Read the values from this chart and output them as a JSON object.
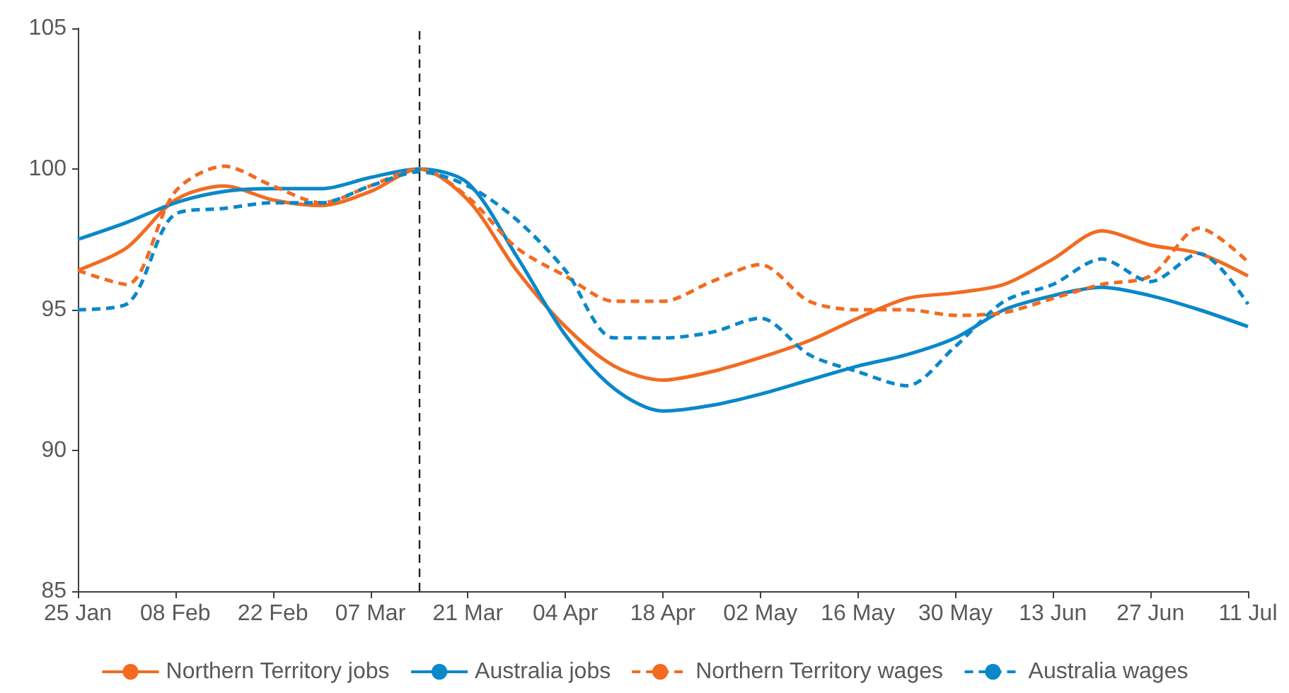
{
  "chart_data": {
    "type": "line",
    "x": [
      "--01-25",
      "--02-01",
      "--02-08",
      "--02-15",
      "--02-22",
      "--02-29",
      "--03-07",
      "--03-14",
      "--03-21",
      "--03-28",
      "--04-04",
      "--04-11",
      "--04-18",
      "--04-25",
      "--05-02",
      "--05-09",
      "--05-16",
      "--05-23",
      "--05-30",
      "--06-06",
      "--06-13",
      "--06-20",
      "--06-27",
      "--07-04",
      "--07-11"
    ],
    "xlim": [
      "--01-25",
      "--07-11"
    ],
    "xticks": [
      {
        "value": "--01-25",
        "label": "25 Jan"
      },
      {
        "value": "--02-08",
        "label": "08 Feb"
      },
      {
        "value": "--02-22",
        "label": "22 Feb"
      },
      {
        "value": "--03-07",
        "label": "07 Mar"
      },
      {
        "value": "--03-21",
        "label": "21 Mar"
      },
      {
        "value": "--04-04",
        "label": "04 Apr"
      },
      {
        "value": "--04-18",
        "label": "18 Apr"
      },
      {
        "value": "--05-02",
        "label": "02 May"
      },
      {
        "value": "--05-16",
        "label": "16 May"
      },
      {
        "value": "--05-30",
        "label": "30 May"
      },
      {
        "value": "--06-13",
        "label": "13 Jun"
      },
      {
        "value": "--06-27",
        "label": "27 Jun"
      },
      {
        "value": "--07-11",
        "label": "11 Jul"
      }
    ],
    "ylim": [
      85,
      105
    ],
    "yticks": [
      85,
      90,
      95,
      100,
      105
    ],
    "series": [
      {
        "name": "Northern Territory jobs",
        "color": "#f26b21",
        "line_style": "solid",
        "values": [
          96.4,
          97.2,
          98.9,
          99.4,
          98.9,
          98.7,
          99.2,
          100,
          98.9,
          96.4,
          94.4,
          93.0,
          92.5,
          92.8,
          93.3,
          93.9,
          94.7,
          95.4,
          95.6,
          95.9,
          96.8,
          97.8,
          97.3,
          97.0,
          96.2
        ]
      },
      {
        "name": "Australia jobs",
        "color": "#0a88c9",
        "line_style": "solid",
        "values": [
          97.5,
          98.1,
          98.8,
          99.2,
          99.3,
          99.3,
          99.7,
          100,
          99.5,
          96.9,
          94.1,
          92.2,
          91.4,
          91.6,
          92.0,
          92.5,
          93.0,
          93.4,
          94.0,
          95.0,
          95.5,
          95.8,
          95.5,
          95.0,
          94.4
        ]
      },
      {
        "name": "Northern Territory wages",
        "color": "#f26b21",
        "line_style": "dashed",
        "values": [
          96.4,
          95.9,
          99.2,
          100.1,
          99.4,
          98.8,
          99.4,
          100,
          99.0,
          97.2,
          96.2,
          95.3,
          95.3,
          96.0,
          96.6,
          95.3,
          95.0,
          95.0,
          94.8,
          94.9,
          95.4,
          95.9,
          96.2,
          97.9,
          96.7
        ]
      },
      {
        "name": "Australia wages",
        "color": "#0a88c9",
        "line_style": "dashed",
        "values": [
          95.0,
          95.2,
          98.4,
          98.6,
          98.8,
          98.8,
          99.4,
          99.9,
          99.4,
          98.2,
          96.4,
          94.0,
          94.0,
          94.2,
          94.7,
          93.4,
          92.8,
          92.3,
          93.7,
          95.3,
          95.9,
          96.8,
          96.0,
          97.0,
          95.2
        ]
      }
    ],
    "ref_lines": [
      {
        "axis": "x",
        "value": "--03-14",
        "color": "#222222",
        "line_style": "dashed"
      }
    ],
    "legend": "bottom",
    "grid": false,
    "marker": "none"
  }
}
